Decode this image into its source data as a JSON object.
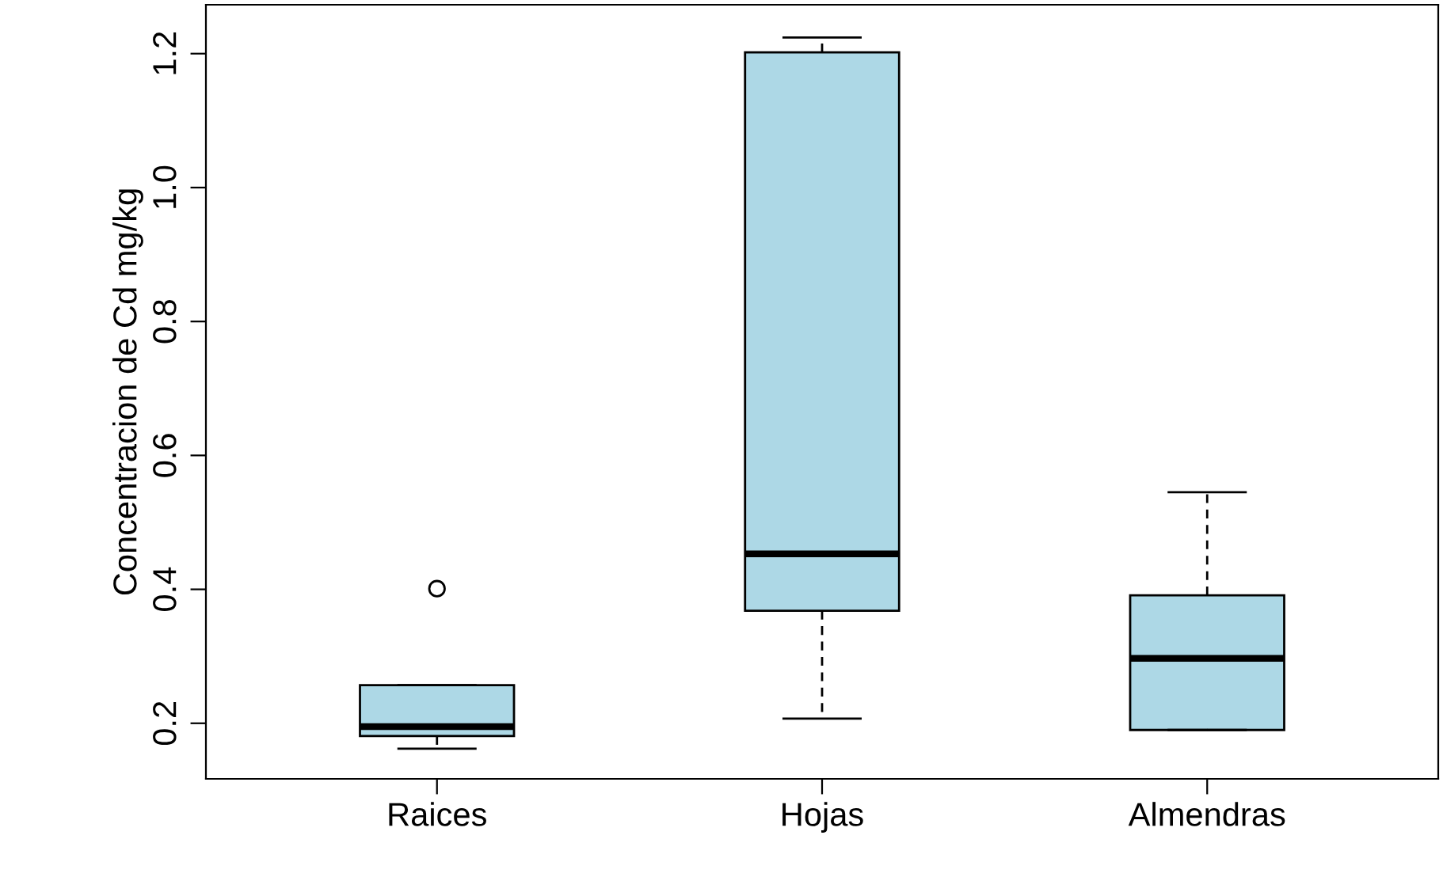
{
  "chart_data": {
    "type": "box",
    "ylabel": "Concentracion de Cd mg/kg",
    "categories": [
      "Raices",
      "Hojas",
      "Almendras"
    ],
    "color": "#add8e6",
    "boxes": [
      {
        "low": 0.162,
        "q1": 0.181,
        "median": 0.195,
        "q3": 0.257,
        "high": 0.257,
        "outliers": [
          0.401
        ]
      },
      {
        "low": 0.207,
        "q1": 0.368,
        "median": 0.453,
        "q3": 1.202,
        "high": 1.224
      },
      {
        "low": 0.19,
        "q1": 0.19,
        "median": 0.297,
        "q3": 0.391,
        "high": 0.545
      }
    ],
    "ylim": [
      0.117,
      1.273
    ],
    "yticks": [
      0.2,
      0.4,
      0.6,
      0.8,
      {
        "value": 1,
        "label": "1.0"
      },
      1.2
    ],
    "grid": false
  }
}
